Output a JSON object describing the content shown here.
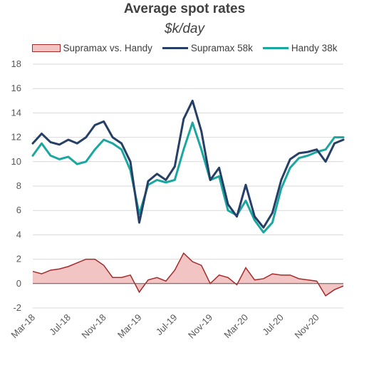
{
  "chart_data": {
    "type": "line",
    "title": "Average spot rates",
    "subtitle": "$k/day",
    "ylim": [
      -2,
      18
    ],
    "yticks": [
      "-2",
      "0",
      "2",
      "4",
      "6",
      "8",
      "10",
      "12",
      "14",
      "16",
      "18"
    ],
    "xticks": [
      "Mar-18",
      "Jul-18",
      "Nov-18",
      "Mar-19",
      "Jul-19",
      "Nov-19",
      "Mar-20",
      "Jul-20",
      "Nov-20"
    ],
    "grid": "horizontal",
    "legend": "top",
    "months": [
      "Mar-18",
      "Apr-18",
      "May-18",
      "Jun-18",
      "Jul-18",
      "Aug-18",
      "Sep-18",
      "Oct-18",
      "Nov-18",
      "Dec-18",
      "Jan-19",
      "Feb-19",
      "Mar-19",
      "Apr-19",
      "May-19",
      "Jun-19",
      "Jul-19",
      "Aug-19",
      "Sep-19",
      "Oct-19",
      "Nov-19",
      "Dec-19",
      "Jan-20",
      "Feb-20",
      "Mar-20",
      "Apr-20",
      "May-20",
      "Jun-20",
      "Jul-20",
      "Aug-20",
      "Sep-20",
      "Oct-20",
      "Nov-20",
      "Dec-20",
      "Jan-21",
      "Feb-21"
    ],
    "series": [
      {
        "name": "Supramax 58k",
        "type": "line",
        "color": "#253f66",
        "values": [
          11.5,
          12.3,
          11.6,
          11.4,
          11.8,
          11.5,
          12.0,
          13.0,
          13.3,
          12.0,
          11.5,
          10.0,
          5.0,
          8.4,
          9.0,
          8.5,
          9.6,
          13.5,
          15.0,
          12.5,
          8.5,
          9.5,
          6.5,
          5.5,
          8.1,
          5.5,
          4.6,
          5.8,
          8.5,
          10.2,
          10.7,
          10.8,
          11.0,
          10.0,
          11.5,
          11.8
        ]
      },
      {
        "name": "Handy 38k",
        "type": "line",
        "color": "#1aa7a0",
        "values": [
          10.5,
          11.5,
          10.5,
          10.2,
          10.4,
          9.8,
          10.0,
          11.0,
          11.8,
          11.5,
          11.0,
          9.3,
          5.7,
          8.1,
          8.5,
          8.3,
          8.5,
          11.0,
          13.2,
          11.0,
          8.5,
          8.8,
          6.0,
          5.6,
          6.8,
          5.2,
          4.2,
          5.0,
          7.8,
          9.5,
          10.3,
          10.5,
          10.8,
          11.0,
          12.0,
          12.0
        ]
      },
      {
        "name": "Supramax vs. Handy",
        "type": "area",
        "color": "#a52a2a",
        "fill": "#f2c4c4",
        "values": [
          1.0,
          0.8,
          1.1,
          1.2,
          1.4,
          1.7,
          2.0,
          2.0,
          1.5,
          0.5,
          0.5,
          0.7,
          -0.7,
          0.3,
          0.5,
          0.2,
          1.1,
          2.5,
          1.8,
          1.5,
          0.0,
          0.7,
          0.5,
          -0.1,
          1.3,
          0.3,
          0.4,
          0.8,
          0.7,
          0.7,
          0.4,
          0.3,
          0.2,
          -1.0,
          -0.5,
          -0.2
        ]
      }
    ]
  }
}
